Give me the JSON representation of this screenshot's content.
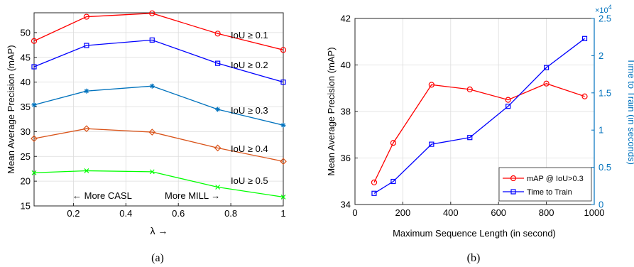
{
  "captions": [
    "(a)",
    "(b)"
  ],
  "chart_data": [
    {
      "type": "line",
      "title": "",
      "xlabel": "λ →",
      "ylabel": "Mean Average Precision (mAP)",
      "xlim": [
        0.05,
        1.0
      ],
      "ylim": [
        15,
        54
      ],
      "xticks": [
        0.2,
        0.4,
        0.6,
        0.8,
        1
      ],
      "xtick_labels": [
        "0.2",
        "0.4",
        "0.6",
        "0.8",
        "1"
      ],
      "yticks": [
        15,
        20,
        25,
        30,
        35,
        40,
        45,
        50
      ],
      "ytick_labels": [
        "15",
        "20",
        "25",
        "30",
        "35",
        "40",
        "45",
        "50"
      ],
      "grid": true,
      "x": [
        0.05,
        0.25,
        0.5,
        0.75,
        1.0
      ],
      "series": [
        {
          "name": "IoU ≥ 0.1",
          "values": [
            48.3,
            53.2,
            53.9,
            49.8,
            46.5
          ],
          "color": "#ff0000",
          "marker": "circle"
        },
        {
          "name": "IoU ≥ 0.2",
          "values": [
            43.1,
            47.4,
            48.5,
            43.8,
            40.0
          ],
          "color": "#0000ff",
          "marker": "square"
        },
        {
          "name": "IoU ≥ 0.3",
          "values": [
            35.4,
            38.2,
            39.2,
            34.5,
            31.3
          ],
          "color": "#0072bd",
          "marker": "asterisk"
        },
        {
          "name": "IoU ≥ 0.4",
          "values": [
            28.6,
            30.6,
            29.9,
            26.7,
            24.0
          ],
          "color": "#d95319",
          "marker": "diamond"
        },
        {
          "name": "IoU ≥ 0.5",
          "values": [
            21.7,
            22.1,
            21.9,
            18.8,
            16.8
          ],
          "color": "#00ff00",
          "marker": "cross"
        }
      ],
      "annotations": [
        "← More CASL",
        "More MILL →"
      ]
    },
    {
      "type": "line",
      "title": "",
      "xlabel": "Maximum Sequence Length (in second)",
      "ylabel_left": "Mean Average Precision (mAP)",
      "ylabel_right": "Time to Train (in seconds)",
      "right_axis_multiplier": "×10^4",
      "xlim": [
        0,
        1000
      ],
      "ylim_left": [
        34,
        42
      ],
      "ylim_right": [
        0,
        2.5
      ],
      "xticks": [
        0,
        200,
        400,
        600,
        800,
        1000
      ],
      "xtick_labels": [
        "0",
        "200",
        "400",
        "600",
        "800",
        "1000"
      ],
      "yticks_left": [
        34,
        36,
        38,
        40,
        42
      ],
      "ytick_labels_left": [
        "34",
        "36",
        "38",
        "40",
        "42"
      ],
      "yticks_right": [
        0,
        0.5,
        1,
        1.5,
        2,
        2.5
      ],
      "ytick_labels_right": [
        "0",
        "0.5",
        "1",
        "1.5",
        "2",
        "2.5"
      ],
      "right_axis_color": "#0072bd",
      "grid": true,
      "legend_position": "bottom-right",
      "x": [
        80,
        160,
        320,
        480,
        640,
        800,
        960
      ],
      "series": [
        {
          "name": "mAP @ IoU>0.3",
          "axis": "left",
          "values": [
            34.95,
            36.65,
            39.15,
            38.95,
            38.5,
            39.2,
            38.65
          ],
          "color": "#ff0000",
          "marker": "circle"
        },
        {
          "name": "Time to Train",
          "axis": "right",
          "values": [
            0.15,
            0.31,
            0.81,
            0.9,
            1.32,
            1.84,
            2.23
          ],
          "color": "#0000ff",
          "marker": "square"
        }
      ]
    }
  ]
}
